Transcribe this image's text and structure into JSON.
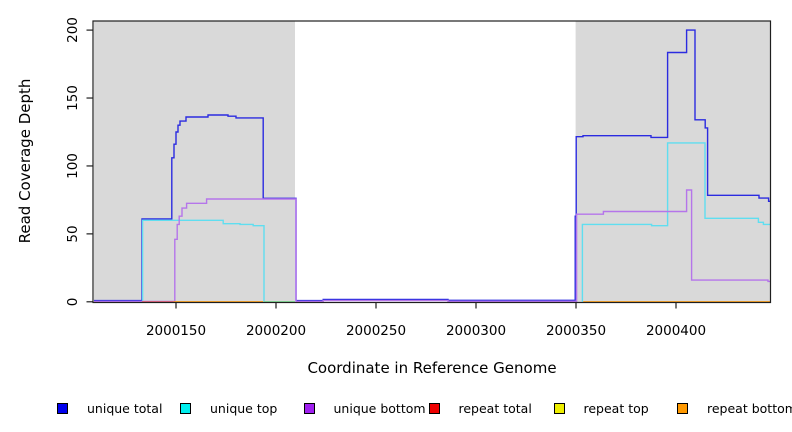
{
  "chart_data": {
    "type": "line",
    "step_interpolation": true,
    "title": "",
    "xlabel": "Coordinate in Reference Genome",
    "ylabel": "Read Coverage Depth",
    "x_ticks": [
      2000150,
      2000200,
      2000250,
      2000300,
      2000350,
      2000400
    ],
    "y_ticks": [
      0,
      50,
      100,
      150,
      200
    ],
    "xlim": [
      2000109,
      2000447.5
    ],
    "ylim": [
      0,
      207
    ],
    "grid": false,
    "legend_position": "bottom",
    "panel_background": "#ffffff",
    "shaded_region_color": "#d9d9d9",
    "shaded_regions": [
      {
        "x_from": 2000109,
        "x_to": 2000209.5
      },
      {
        "x_from": 2000349.8,
        "x_to": 2000447.5
      }
    ],
    "series": [
      {
        "name": "unique total",
        "legend_color": "#0000ee",
        "line_color": "#2b2be0",
        "segments": [
          [
            [
              2000109,
              0.9
            ],
            [
              2000133,
              61
            ],
            [
              2000147.9,
              106
            ],
            [
              2000149,
              116
            ],
            [
              2000150,
              125
            ],
            [
              2000151,
              130
            ],
            [
              2000152,
              133
            ],
            [
              2000155,
              136
            ],
            [
              2000166,
              137.5
            ],
            [
              2000176,
              136.6
            ],
            [
              2000180,
              135.4
            ],
            [
              2000193.6,
              76.2
            ],
            [
              2000210,
              0.9
            ],
            [
              2000223.6,
              1.8
            ],
            [
              2000286,
              1.1
            ],
            [
              2000349.6,
              63
            ],
            [
              2000350.1,
              121.5
            ],
            [
              2000353.5,
              122.3
            ],
            [
              2000387.5,
              121
            ],
            [
              2000395.8,
              183.5
            ],
            [
              2000405.3,
              200
            ],
            [
              2000409.5,
              134
            ],
            [
              2000414.6,
              128
            ],
            [
              2000415.8,
              78.4
            ],
            [
              2000441.5,
              76.3
            ],
            [
              2000446.3,
              74
            ],
            [
              2000447.5,
              74
            ]
          ]
        ]
      },
      {
        "name": "unique top",
        "legend_color": "#00eeee",
        "line_color": "#5fdef0",
        "segments": [
          [
            [
              2000133.3,
              0
            ],
            [
              2000133.3,
              60
            ],
            [
              2000173.6,
              57.5
            ],
            [
              2000182,
              57
            ],
            [
              2000188.6,
              56
            ],
            [
              2000194,
              0
            ],
            [
              2000209.5,
              0
            ]
          ],
          [
            [
              2000353.2,
              0
            ],
            [
              2000353.2,
              57
            ],
            [
              2000387.8,
              56
            ],
            [
              2000395.8,
              117
            ],
            [
              2000414.5,
              61.5
            ],
            [
              2000441.2,
              58.5
            ],
            [
              2000443.7,
              57
            ],
            [
              2000447.5,
              57
            ]
          ]
        ]
      },
      {
        "name": "unique bottom",
        "legend_color": "#a020f0",
        "line_color": "#b575ea",
        "segments": [
          [
            [
              2000109,
              0.3
            ],
            [
              2000149.4,
              46
            ],
            [
              2000150.6,
              57
            ],
            [
              2000151.6,
              63
            ],
            [
              2000153,
              69
            ],
            [
              2000155.3,
              72.5
            ],
            [
              2000165.3,
              75.7
            ],
            [
              2000210,
              0.2
            ],
            [
              2000223.6,
              0.9
            ],
            [
              2000286,
              0.35
            ],
            [
              2000350.3,
              64.5
            ],
            [
              2000363.7,
              66.5
            ],
            [
              2000405.3,
              82.3
            ],
            [
              2000407.8,
              16
            ],
            [
              2000446,
              15
            ],
            [
              2000447.5,
              15
            ]
          ]
        ]
      },
      {
        "name": "repeat total",
        "legend_color": "#ee0000",
        "line_color": "#e8636e",
        "segments": [
          [
            [
              2000133,
              0
            ],
            [
              2000148.8,
              0
            ]
          ]
        ]
      },
      {
        "name": "repeat top",
        "legend_color": "#eeee00",
        "line_color": "#eded2a",
        "segments": []
      },
      {
        "name": "repeat bottom",
        "legend_color": "#ff9900",
        "line_color": "#ff9d0f",
        "segments": [
          [
            [
              2000148.8,
              0
            ],
            [
              2000193.6,
              0
            ]
          ],
          [
            [
              2000353.6,
              0
            ],
            [
              2000447.5,
              0
            ]
          ]
        ]
      }
    ],
    "overlap_segments": [
      {
        "note": "unique top and repeat top coincide at zero; anti-aliased blend appears green",
        "color": "#8ade8d",
        "points": [
          [
            2000194,
            0
          ],
          [
            2000209.5,
            0
          ]
        ]
      }
    ]
  }
}
